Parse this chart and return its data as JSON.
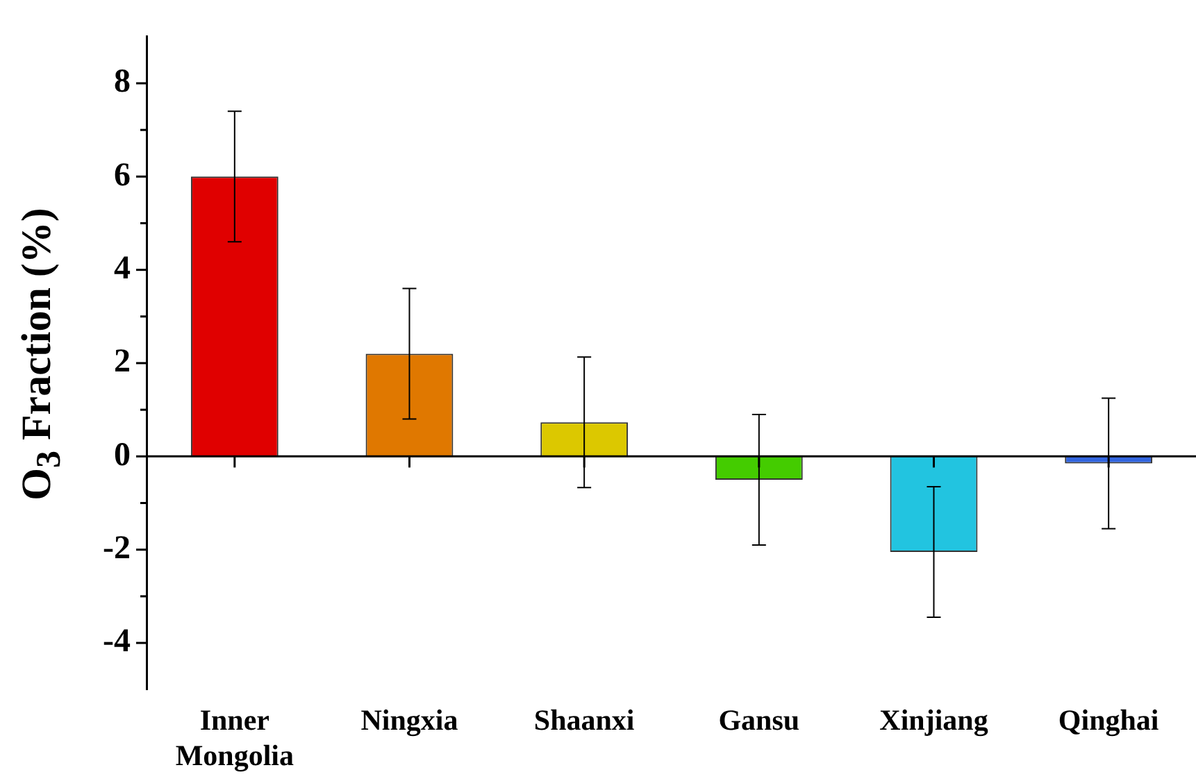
{
  "chart_data": {
    "type": "bar",
    "ylabel": "O$_{3}$ Fraction (%)",
    "categories": [
      "Inner Mongolia",
      "Ningxia",
      "Shaanxi",
      "Gansu",
      "Xinjiang",
      "Qinghai"
    ],
    "values": [
      6.0,
      2.2,
      0.73,
      -0.5,
      -2.05,
      -0.15
    ],
    "colors": [
      "#e00000",
      "#e07800",
      "#dcc800",
      "#44cc00",
      "#22c4e0",
      "#3366e0"
    ],
    "errors": [
      1.4,
      1.4,
      1.4,
      1.4,
      1.4,
      1.4
    ],
    "ylim": [
      -5,
      9
    ],
    "yticks": [
      {
        "value": -4,
        "label": "-4"
      },
      {
        "value": -3,
        "label": null
      },
      {
        "value": -2,
        "label": "-2"
      },
      {
        "value": -1,
        "label": null
      },
      0,
      {
        "value": 1,
        "label": null
      },
      2,
      {
        "value": 3,
        "label": null
      },
      4,
      {
        "value": 5,
        "label": null
      },
      6,
      {
        "value": 7,
        "label": null
      },
      8
    ],
    "ref_lines": [
      {
        "axis": "y",
        "value": 0,
        "color": "#000000"
      }
    ],
    "grid": false,
    "legend": false
  }
}
